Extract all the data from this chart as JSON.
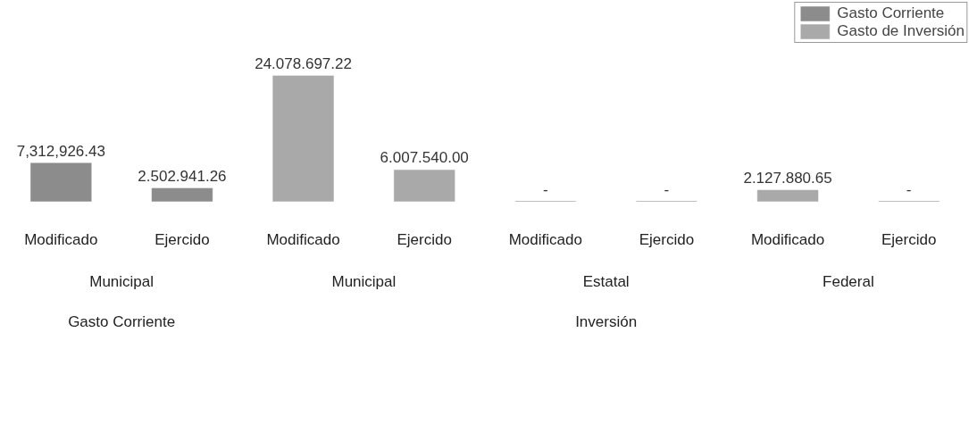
{
  "chart_data": {
    "type": "bar",
    "categories": [
      "Modificado",
      "Ejercido",
      "Modificado",
      "Ejercido",
      "Modificado",
      "Ejercido",
      "Modificado",
      "Ejercido"
    ],
    "series": [
      {
        "name": "Gasto Corriente",
        "color": "#8c8c8c",
        "values": [
          7312926.43,
          2502941.26,
          null,
          null,
          null,
          null,
          null,
          null
        ],
        "value_labels": [
          "7,312,926.43",
          "2.502.941.26",
          null,
          null,
          null,
          null,
          null,
          null
        ]
      },
      {
        "name": "Gasto de Inversión",
        "color": "#a9a9a9",
        "values": [
          null,
          null,
          24078697.22,
          6007540.0,
          0,
          0,
          2127880.65,
          0
        ],
        "value_labels": [
          null,
          null,
          "24.078.697.22",
          "6.007.540.00",
          "-",
          "-",
          "2.127.880.65",
          "-"
        ]
      }
    ],
    "annotations": [
      "Municipal",
      "Municipal",
      "Estatal",
      "Federal",
      "Gasto Corriente",
      "Inversión"
    ],
    "legend": "top right",
    "grid": false
  }
}
